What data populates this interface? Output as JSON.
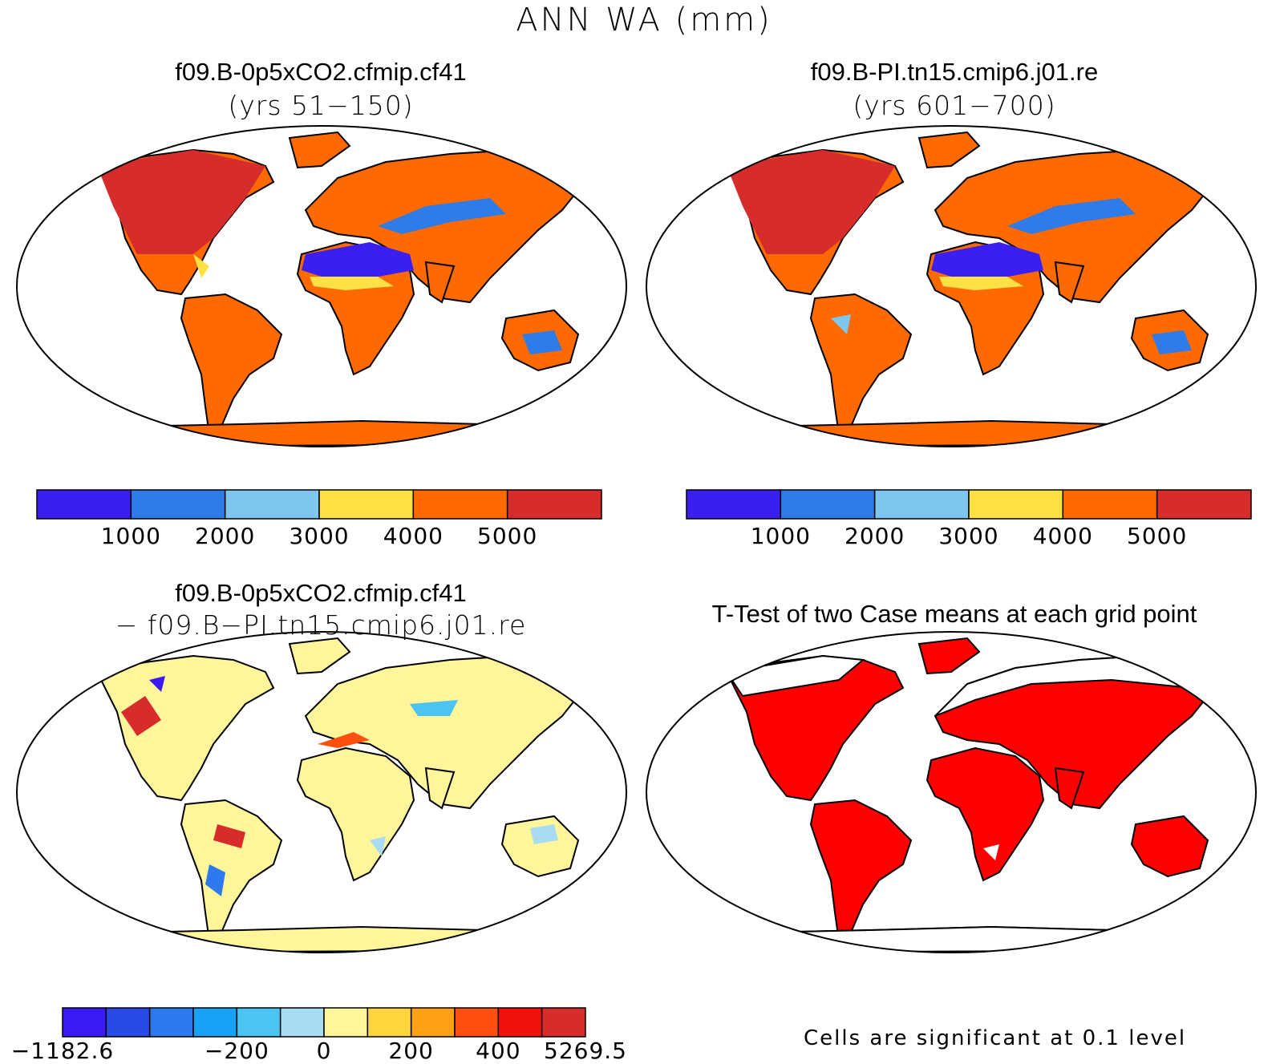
{
  "figure": {
    "title": "ANN WA (mm)"
  },
  "panels": [
    {
      "title": "f09.B-0p5xCO2.cfmip.cf41",
      "subtitle": "(yrs 51−150)"
    },
    {
      "title": "f09.B-PI.tn15.cmip6.j01.re",
      "subtitle": "(yrs 601−700)"
    },
    {
      "title": "f09.B-0p5xCO2.cfmip.cf41",
      "subtitle": "− f09.B−PI.tn15.cmip6.j01.re"
    },
    {
      "title": "T-Test of two Case means at each grid point",
      "subtitle": ""
    }
  ],
  "colorbars": {
    "absolute": {
      "colors": [
        "#3b1ff0",
        "#2f7be8",
        "#7ec6ee",
        "#ffe045",
        "#ff6a00",
        "#d62c2c"
      ],
      "labels": [
        "1000",
        "2000",
        "3000",
        "4000",
        "5000"
      ]
    },
    "difference": {
      "colors": [
        "#3a1af5",
        "#2a4ae8",
        "#2d7af0",
        "#18a2f5",
        "#4cc4f2",
        "#a9dcf2",
        "#fff59a",
        "#ffd43c",
        "#ffa015",
        "#ff5010",
        "#f0100c",
        "#d62c2c"
      ],
      "labels": [
        "−1182.6",
        "−200",
        "0",
        "200",
        "400",
        "5269.5"
      ],
      "label_slots": [
        0,
        4,
        6,
        8,
        10,
        12
      ]
    }
  },
  "significance_note": "Cells are significant at 0.1 level",
  "legend_colors": {
    "significant": "#ff0000",
    "land_outline": "#000000"
  }
}
